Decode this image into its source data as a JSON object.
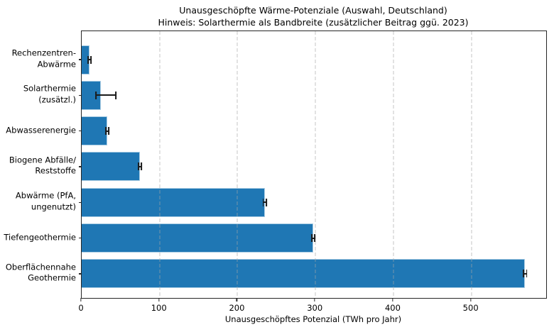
{
  "title": "Unausgeschöpfte Wärme-Potenziale (Auswahl, Deutschland)",
  "subtitle": "Hinweis: Solarthermie als Bandbreite (zusätzlicher Beitrag ggü. 2023)",
  "chart_data": {
    "type": "bar",
    "orientation": "horizontal",
    "title": "Unausgeschöpfte Wärme-Potenziale (Auswahl, Deutschland)",
    "subtitle": "Hinweis: Solarthermie als Bandbreite (zusätzlicher Beitrag ggü. 2023)",
    "categories": [
      "Rechenzentren-\nAbwärme",
      "Solarthermie\n(zusätzl.)",
      "Abwasserenergie",
      "Biogene Abfälle/\nReststoffe",
      "Abwärme (PfA,\nungenutzt)",
      "Tiefengeothermie",
      "Oberflächennahe\nGeothermie"
    ],
    "values": [
      10,
      25,
      33,
      75,
      235,
      297,
      569
    ],
    "error_minus": [
      2,
      7,
      2,
      2,
      2,
      2,
      2
    ],
    "error_plus": [
      2,
      19,
      2,
      2,
      2,
      2,
      2
    ],
    "xlabel": "Unausgeschöpftes Potenzial (TWh pro Jahr)",
    "x_ticks": [
      0,
      100,
      200,
      300,
      400,
      500
    ],
    "xlim": [
      0,
      596
    ],
    "grid": "vertical-dashed",
    "legend": "none",
    "colors": {
      "bar_fill": "#1f77b4",
      "bar_edge": "#a9cce3",
      "error_bar": "#1a1a1a",
      "gridline": "#a5a5a5",
      "spine": "#262626",
      "text": "#000000",
      "background": "#ffffff"
    }
  }
}
